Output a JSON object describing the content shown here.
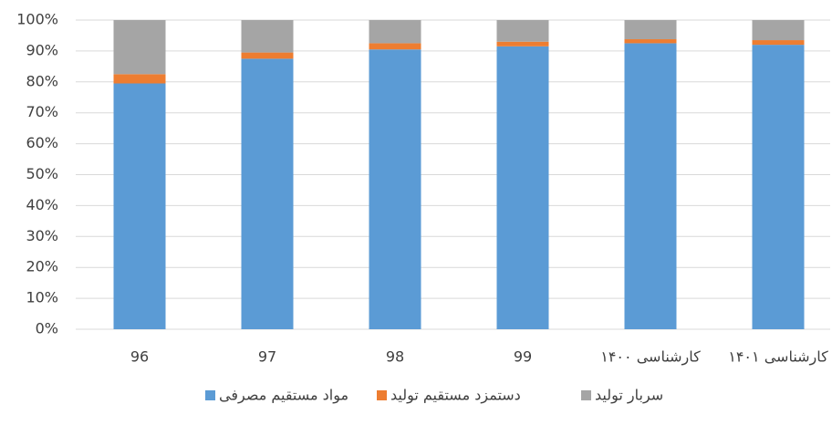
{
  "chart_data": {
    "type": "stacked_bar_100",
    "categories": [
      "96",
      "97",
      "98",
      "99",
      "کارشناسی ۱۴۰۰",
      "کارشناسی ۱۴۰۱"
    ],
    "series": [
      {
        "name": "مواد مستقیم مصرفی",
        "color": "#5b9bd5",
        "values": [
          79.5,
          87.5,
          90.5,
          91.5,
          92.5,
          92
        ]
      },
      {
        "name": "دستمزد مستقیم تولید",
        "color": "#ed7d31",
        "values": [
          3,
          2,
          2,
          1.5,
          1.3,
          1.5
        ]
      },
      {
        "name": "سربار تولید",
        "color": "#a5a5a5",
        "values": [
          17.5,
          10.5,
          7.5,
          7,
          6.2,
          6.5
        ]
      }
    ],
    "ylim": [
      0,
      100
    ],
    "yticks": [
      {
        "value": 0,
        "label": "0%"
      },
      {
        "value": 10,
        "label": "10%"
      },
      {
        "value": 20,
        "label": "20%"
      },
      {
        "value": 30,
        "label": "30%"
      },
      {
        "value": 40,
        "label": "40%"
      },
      {
        "value": 50,
        "label": "50%"
      },
      {
        "value": 60,
        "label": "60%"
      },
      {
        "value": 70,
        "label": "70%"
      },
      {
        "value": 80,
        "label": "80%"
      },
      {
        "value": 90,
        "label": "90%"
      },
      {
        "value": 100,
        "label": "100%"
      }
    ],
    "grid": true,
    "legend": "bottom"
  }
}
